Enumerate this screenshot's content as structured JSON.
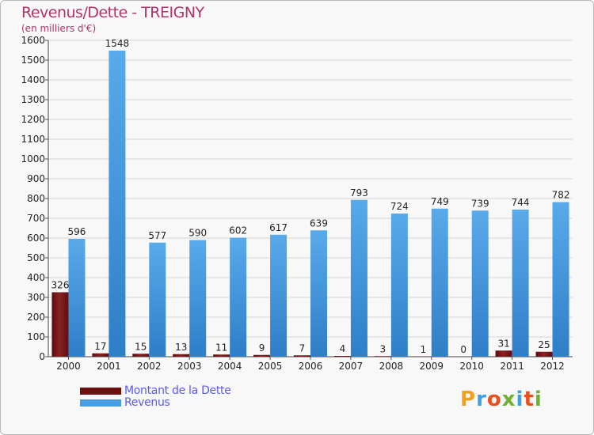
{
  "chart_data": {
    "type": "bar",
    "title": "Revenus/Dette - TREIGNY",
    "subtitle": "(en milliers d'€)",
    "xlabel": "",
    "ylabel": "",
    "ylim": [
      0,
      1600
    ],
    "yticks": [
      0,
      100,
      200,
      300,
      400,
      500,
      600,
      700,
      800,
      900,
      1000,
      1100,
      1200,
      1300,
      1400,
      1500,
      1600
    ],
    "categories": [
      "2000",
      "2001",
      "2002",
      "2003",
      "2004",
      "2005",
      "2006",
      "2007",
      "2008",
      "2009",
      "2010",
      "2011",
      "2012"
    ],
    "series": [
      {
        "name": "Montant de la Dette",
        "color": "#6b1010",
        "values": [
          326,
          17,
          15,
          13,
          11,
          9,
          7,
          4,
          3,
          1,
          0,
          31,
          25
        ]
      },
      {
        "name": "Revenus",
        "color": "#4a9ee0",
        "values": [
          596,
          1548,
          577,
          590,
          602,
          617,
          639,
          793,
          724,
          749,
          739,
          744,
          782
        ]
      }
    ],
    "legend_position": "bottom-left",
    "grid": true
  },
  "branding": {
    "logo_text": "Proxiti",
    "logo_colors": [
      "#f0a020",
      "#3fa0e0",
      "#e85020",
      "#70b030",
      "#3fa0e0",
      "#e85020",
      "#70b030"
    ]
  }
}
